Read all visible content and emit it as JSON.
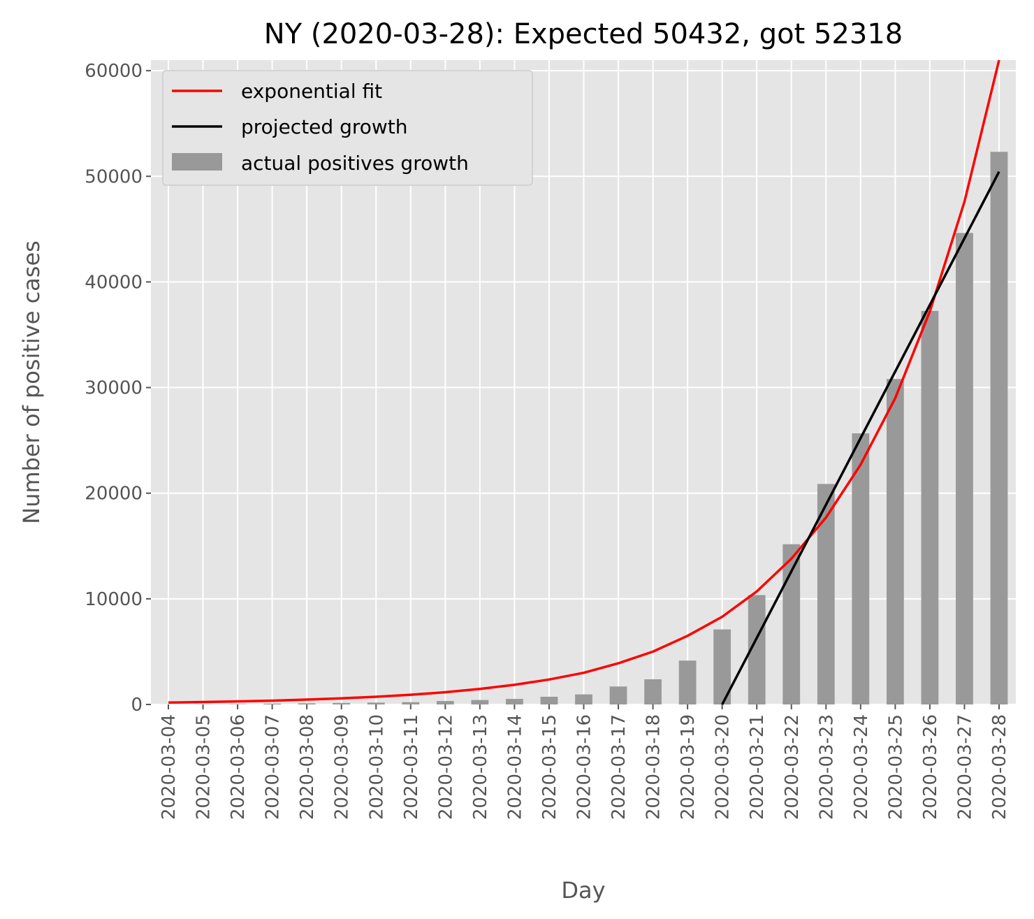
{
  "chart_data": {
    "type": "bar",
    "title": "NY (2020-03-28): Expected 50432, got 52318",
    "xlabel": "Day",
    "ylabel": "Number of positive cases",
    "ylim": [
      0,
      61000
    ],
    "yticks": [
      0,
      10000,
      20000,
      30000,
      40000,
      50000,
      60000
    ],
    "grid": true,
    "legend_position": "top-left",
    "categories": [
      "2020-03-04",
      "2020-03-05",
      "2020-03-06",
      "2020-03-07",
      "2020-03-08",
      "2020-03-09",
      "2020-03-10",
      "2020-03-11",
      "2020-03-12",
      "2020-03-13",
      "2020-03-14",
      "2020-03-15",
      "2020-03-16",
      "2020-03-17",
      "2020-03-18",
      "2020-03-19",
      "2020-03-20",
      "2020-03-21",
      "2020-03-22",
      "2020-03-23",
      "2020-03-24",
      "2020-03-25",
      "2020-03-26",
      "2020-03-27",
      "2020-03-28"
    ],
    "series": [
      {
        "name": "actual positives growth",
        "kind": "bar",
        "color": "#999999",
        "values": [
          6,
          22,
          33,
          76,
          106,
          142,
          173,
          216,
          325,
          421,
          524,
          729,
          950,
          1700,
          2382,
          4152,
          7102,
          10356,
          15168,
          20875,
          25665,
          30811,
          37258,
          44635,
          52318
        ]
      },
      {
        "name": "exponential fit",
        "kind": "line",
        "color": "#ff0000",
        "x": [
          "2020-03-04",
          "2020-03-05",
          "2020-03-06",
          "2020-03-07",
          "2020-03-08",
          "2020-03-09",
          "2020-03-10",
          "2020-03-11",
          "2020-03-12",
          "2020-03-13",
          "2020-03-14",
          "2020-03-15",
          "2020-03-16",
          "2020-03-17",
          "2020-03-18",
          "2020-03-19",
          "2020-03-20",
          "2020-03-21",
          "2020-03-22",
          "2020-03-23",
          "2020-03-24",
          "2020-03-25",
          "2020-03-26",
          "2020-03-27",
          "2020-03-28"
        ],
        "values": [
          180,
          230,
          290,
          360,
          460,
          580,
          730,
          920,
          1160,
          1470,
          1860,
          2360,
          3000,
          3900,
          5000,
          6500,
          8300,
          10700,
          13800,
          17700,
          22700,
          29000,
          37200,
          47600,
          61000
        ]
      },
      {
        "name": "projected growth",
        "kind": "line",
        "color": "#000000",
        "x": [
          "2020-03-20",
          "2020-03-28"
        ],
        "values": [
          0,
          50432
        ]
      }
    ]
  }
}
